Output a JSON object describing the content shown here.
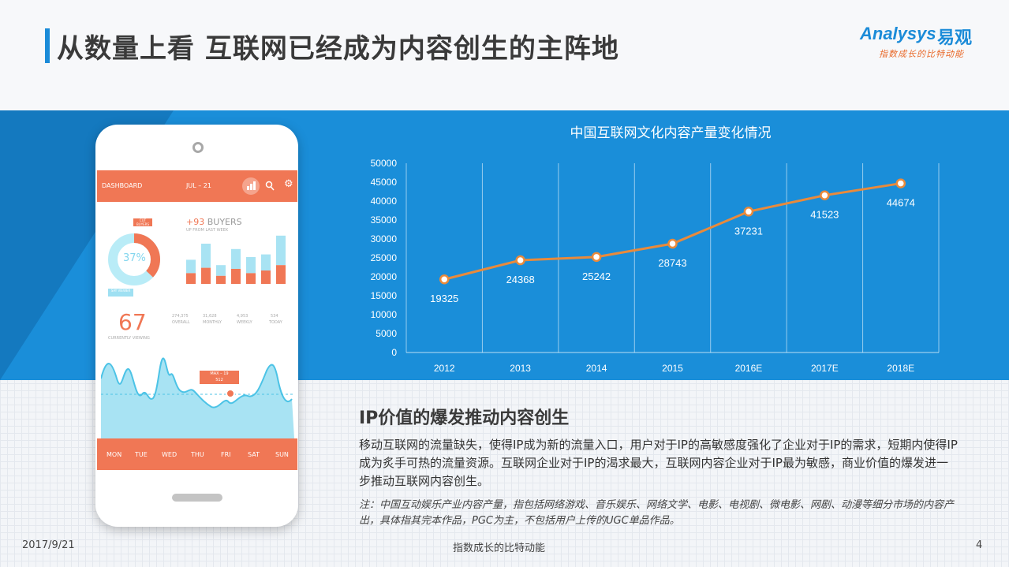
{
  "header": {
    "title": "从数量上看 互联网已经成为内容创生的主阵地",
    "logo_wordmark": "Analysys",
    "logo_cn": "易观",
    "logo_slogan": "指数成长的比特动能"
  },
  "phone_mockup": {
    "header_label": "DASHBOARD",
    "header_date": "JUL – 21",
    "donut_percent": "37%",
    "donut_tag_top": "CUT BUYERS",
    "donut_tag_bottom": "SAY VIEWER",
    "buyers_headline_num": "+93",
    "buyers_headline_text": " BUYERS",
    "buyers_sub": "UP FROM LAST WEEK",
    "bar_fractions": [
      {
        "total": 0.45,
        "orange": 0.2
      },
      {
        "total": 0.75,
        "orange": 0.3
      },
      {
        "total": 0.35,
        "orange": 0.15
      },
      {
        "total": 0.65,
        "orange": 0.28
      },
      {
        "total": 0.5,
        "orange": 0.2
      },
      {
        "total": 0.55,
        "orange": 0.25
      },
      {
        "total": 0.9,
        "orange": 0.35
      }
    ],
    "stats": [
      {
        "num": "274,375",
        "label": "OVERALL"
      },
      {
        "num": "31,628",
        "label": "MONTHLY"
      },
      {
        "num": "4,953",
        "label": "WEEKLY"
      },
      {
        "num": "534",
        "label": "TODAY"
      }
    ],
    "viewing_num": "67",
    "viewing_label": "CURRENTLY VIEWING",
    "max_tag_line1": "MAX – 19",
    "max_tag_line2": "512",
    "days": [
      "MON",
      "TUE",
      "WED",
      "THU",
      "FRI",
      "SAT",
      "SUN"
    ]
  },
  "chart_data": {
    "type": "line",
    "title": "中国互联网文化内容产量变化情况",
    "categories": [
      "2012",
      "2013",
      "2014",
      "2015",
      "2016E",
      "2017E",
      "2018E"
    ],
    "values": [
      19325,
      24368,
      25242,
      28743,
      37231,
      41523,
      44674
    ],
    "yticks": [
      "0",
      "5000",
      "10000",
      "15000",
      "20000",
      "25000",
      "30000",
      "35000",
      "40000",
      "45000",
      "50000"
    ],
    "ylim": [
      0,
      50000
    ],
    "grid": "vertical",
    "line_color": "#e98a3b"
  },
  "section": {
    "title": "IP价值的爆发推动内容创生",
    "body": "移动互联网的流量缺失，使得IP成为新的流量入口，用户对于IP的高敏感度强化了企业对于IP的需求，短期内使得IP成为炙手可热的流量资源。互联网企业对于IP的渴求最大，互联网内容企业对于IP最为敏感，商业价值的爆发进一步推动互联网内容创生。",
    "note": "注：中国互动娱乐产业内容产量，指包括网络游戏、音乐娱乐、网络文学、电影、电视剧、微电影、网剧、动漫等细分市场的内容产出，具体指其完本作品，PGC为主，不包括用户上传的UGC单品作品。"
  },
  "footer": {
    "date": "2017/9/21",
    "slogan": "指数成长的比特动能",
    "page": "4"
  }
}
